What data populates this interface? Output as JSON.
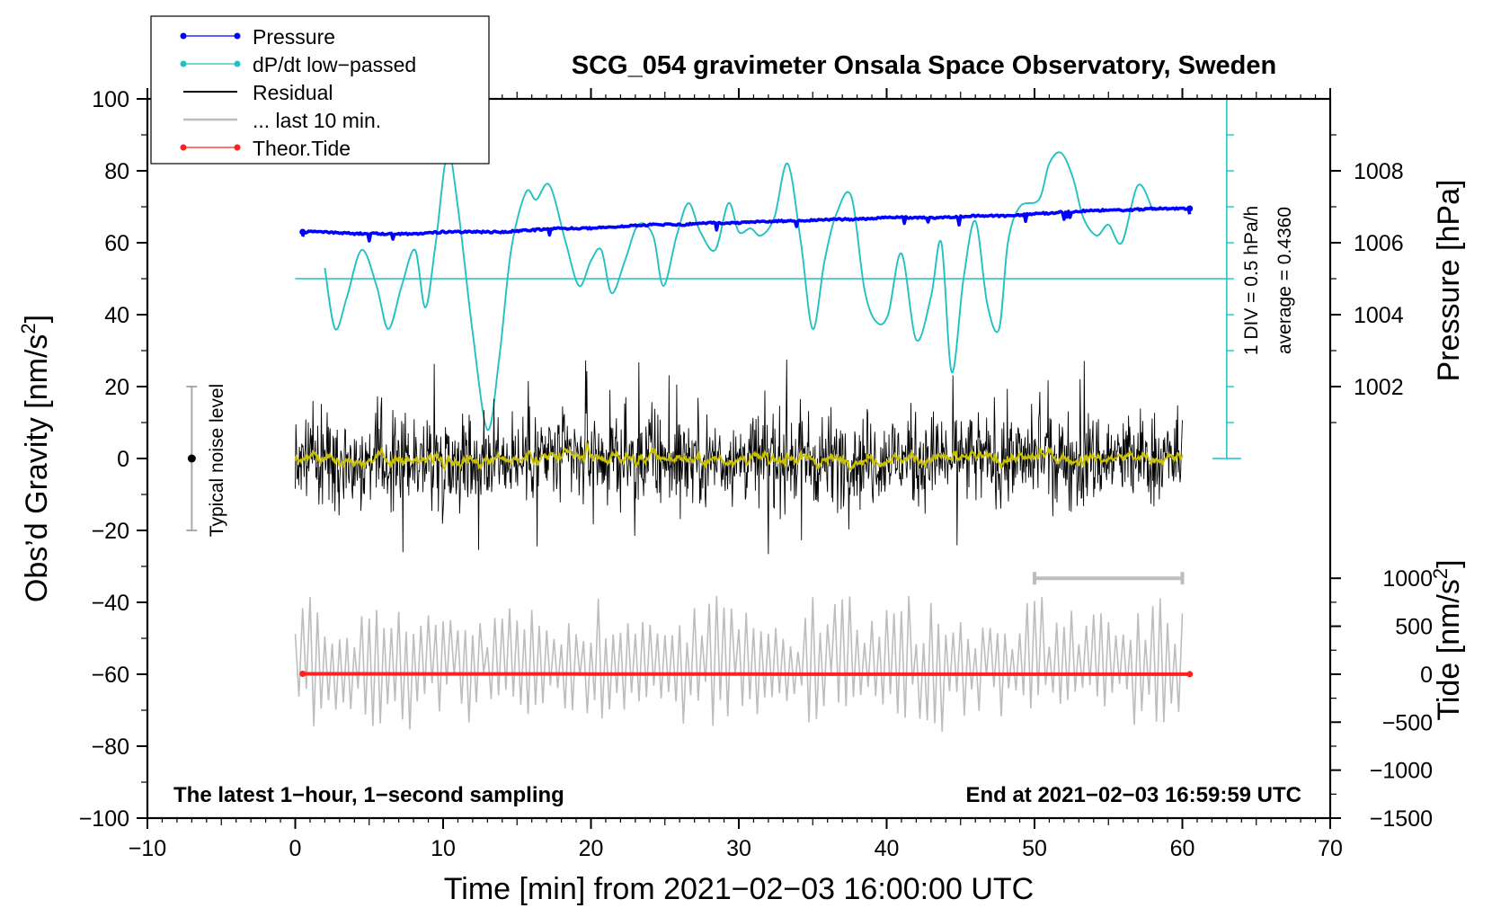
{
  "chart_data": {
    "type": "line",
    "title": "SCG_054 gravimeter Onsala Space Observatory, Sweden",
    "xlabel": "Time [min] from 2021−02−03 16:00:00 UTC",
    "ylabel": "Obs’d Gravity [nm/s",
    "ylabel_sup": "2",
    "ylabel_end": "]",
    "y2label_pressure": "Pressure [hPa]",
    "y2label_tide": "Tide [nm/s",
    "y2label_tide_sup": "2",
    "y2label_tide_end": "]",
    "xlim": [
      -10,
      70
    ],
    "ylim": [
      -100,
      100
    ],
    "x_ticks": [
      "−10",
      "0",
      "10",
      "20",
      "30",
      "40",
      "50",
      "60",
      "70"
    ],
    "x_tick_values": [
      -10,
      0,
      10,
      20,
      30,
      40,
      50,
      60,
      70
    ],
    "y_ticks": [
      "100",
      "80",
      "60",
      "40",
      "20",
      "0",
      "−20",
      "−40",
      "−60",
      "−80",
      "−100"
    ],
    "y_tick_values": [
      100,
      80,
      60,
      40,
      20,
      0,
      -20,
      -40,
      -60,
      -80,
      -100
    ],
    "pressure_ticks": [
      "1008",
      "1006",
      "1004",
      "1002"
    ],
    "pressure_tick_values": [
      1008,
      1006,
      1004,
      1002
    ],
    "pressure_axis_map": {
      "hpa": [
        1002,
        1008
      ],
      "gravity": [
        20,
        80
      ]
    },
    "tide_ticks": [
      "1000",
      "500",
      "0",
      "−500",
      "−1000",
      "−1500"
    ],
    "tide_tick_values": [
      1000,
      500,
      0,
      -500,
      -1000,
      -1500
    ],
    "tide_axis_map": {
      "tide": [
        -1500,
        1000
      ],
      "gravity": [
        -100,
        -33.3
      ]
    },
    "legend": {
      "placement": "top-left",
      "entries": [
        {
          "label": "Pressure",
          "color": "#0000ff",
          "style": "line-dot"
        },
        {
          "label": "dP/dt low−passed",
          "color": "#22c1c1",
          "style": "line-dot"
        },
        {
          "label": "Residual",
          "color": "#000000",
          "style": "line"
        },
        {
          "label": "... last 10 min.",
          "color": "#bdbdbd",
          "style": "line"
        },
        {
          "label": "Theor.Tide",
          "color": "#ff0000",
          "style": "line-dot"
        }
      ]
    },
    "annotations": {
      "bottom_left": "The latest 1−hour, 1−second sampling",
      "bottom_right": "End at 2021−02−03 16:59:59 UTC",
      "dpdt_scale": "1 DIV = 0.5 hPa/h",
      "dpdt_average": "average = 0.4360",
      "noise_level": "Typical noise level"
    },
    "colors": {
      "pressure": "#0000ff",
      "dpdt": "#22c1c1",
      "residual": "#000000",
      "smoothed": "#c8c000",
      "last10": "#bdbdbd",
      "tide": "#ff2020"
    },
    "noise_bar": {
      "x": -7,
      "center": 0,
      "low": -20,
      "high": 20
    },
    "dpdt_reference_level": 50,
    "dpdt_axis": {
      "x": 63,
      "from": 0,
      "to": 100,
      "division": 10
    },
    "last10_window": [
      50,
      60
    ],
    "series": [
      {
        "name": "Pressure",
        "unit": "hPa",
        "x": [
          0.5,
          2,
          4,
          6,
          8,
          10,
          12,
          14,
          16,
          18,
          20,
          22,
          24,
          26,
          28,
          30,
          32,
          34,
          36,
          38,
          40,
          42,
          44,
          46,
          48,
          50,
          52,
          54,
          56,
          58,
          60.5
        ],
        "values": [
          1006.3,
          1006.3,
          1006.25,
          1006.25,
          1006.25,
          1006.3,
          1006.3,
          1006.3,
          1006.35,
          1006.4,
          1006.4,
          1006.45,
          1006.5,
          1006.5,
          1006.55,
          1006.55,
          1006.6,
          1006.6,
          1006.65,
          1006.65,
          1006.7,
          1006.7,
          1006.7,
          1006.75,
          1006.75,
          1006.8,
          1006.85,
          1006.9,
          1006.9,
          1006.95,
          1006.95
        ]
      },
      {
        "name": "dP/dt low−passed",
        "unit": "nm/s2 display",
        "x": [
          2,
          2.7,
          3.5,
          4.5,
          5.5,
          6.3,
          7.2,
          8.1,
          8.8,
          9.5,
          10.3,
          11,
          12,
          13,
          13.8,
          14.6,
          15.6,
          16.3,
          17.2,
          18.3,
          19.2,
          20,
          20.7,
          21.4,
          22.3,
          23.2,
          24.2,
          24.9,
          25.8,
          26.6,
          27.4,
          28.4,
          29.3,
          30,
          30.8,
          31.5,
          32.4,
          33.3,
          34.2,
          35,
          35.8,
          36.6,
          37.6,
          38.5,
          39.3,
          40.1,
          41,
          42,
          43,
          43.7,
          44.4,
          45.2,
          46,
          46.8,
          47.6,
          48.2,
          49,
          50.3,
          51,
          51.8,
          52.6,
          53.3,
          54.2,
          55,
          55.9,
          57,
          58
        ],
        "values": [
          53,
          36,
          45,
          58,
          48,
          36,
          48,
          58,
          42,
          60,
          85,
          70,
          35,
          8,
          28,
          58,
          74,
          72,
          76,
          60,
          48,
          55,
          58,
          46,
          55,
          65,
          62,
          48,
          62,
          71,
          63,
          58,
          71,
          63,
          64,
          62,
          67,
          82,
          60,
          36,
          55,
          68,
          73,
          47,
          38,
          40,
          57,
          33,
          45,
          60,
          24,
          50,
          66,
          43,
          36,
          60,
          70,
          72,
          82,
          85,
          78,
          67,
          62,
          65,
          60,
          76,
          69
        ]
      },
      {
        "name": "Residual",
        "unit": "nm/s2",
        "x_range": [
          0,
          60
        ],
        "typical_amplitude": 12,
        "extreme_max": 29,
        "extreme_min": -28
      },
      {
        "name": "... last 10 min.",
        "unit": "nm/s2 display",
        "x_range": [
          0,
          60
        ],
        "offset": -57,
        "amplitude_max": 20
      },
      {
        "name": "Theor.Tide",
        "unit": "nm/s2",
        "x": [
          0.5,
          10,
          20,
          30,
          40,
          50,
          60.5
        ],
        "values": [
          4,
          3,
          2,
          1,
          0,
          0,
          0
        ]
      }
    ]
  }
}
